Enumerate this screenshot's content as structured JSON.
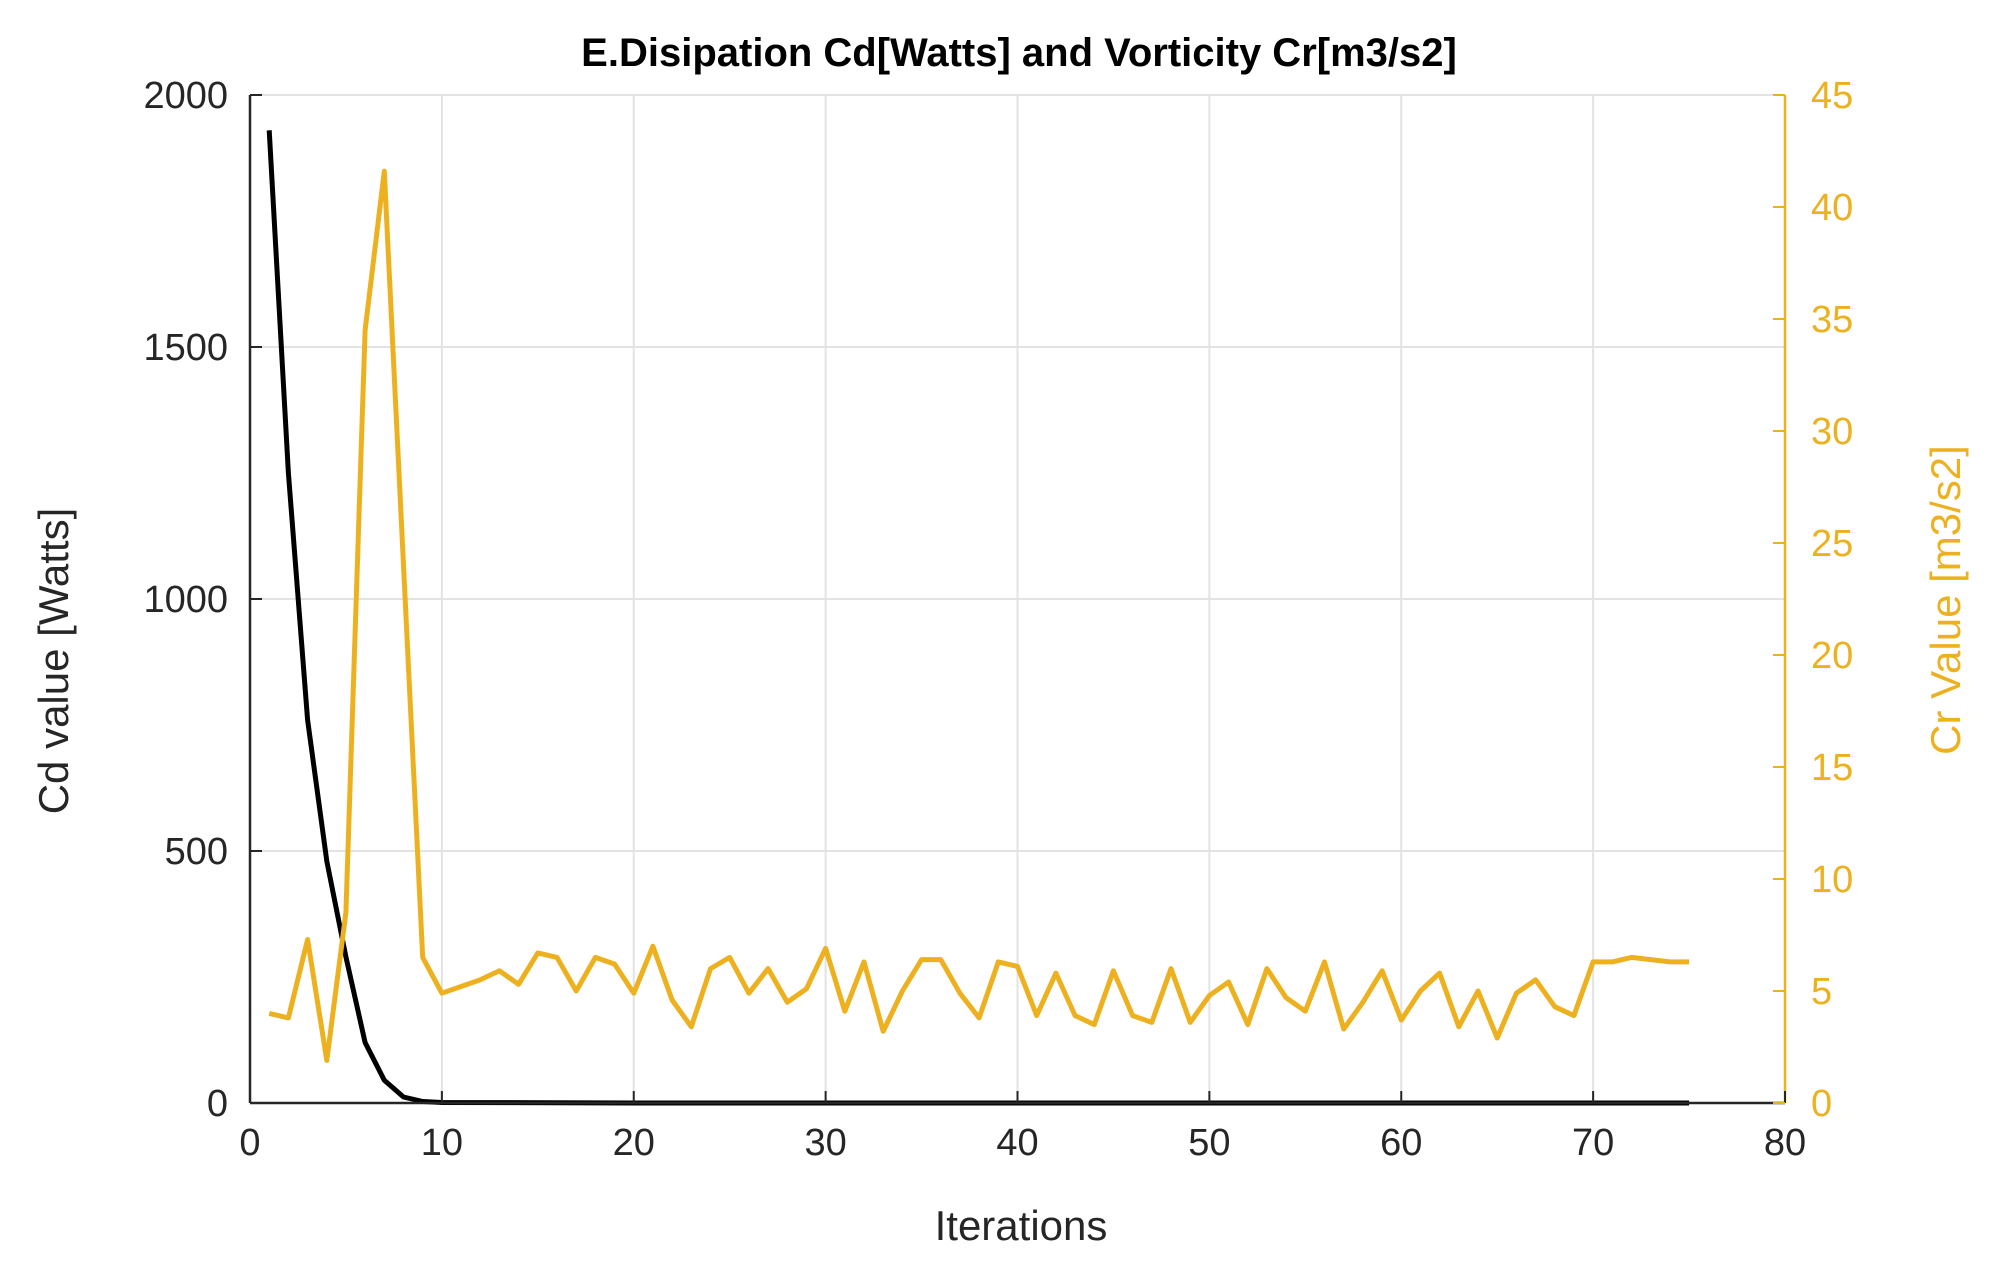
{
  "chart_data": {
    "type": "line",
    "title": "E.Disipation Cd[Watts] and Vorticity Cr[m3/s2]",
    "xlabel": "Iterations",
    "ylabel_left": "Cd value [Watts]",
    "ylabel_right": "Cr Value [m3/s2]",
    "xlim": [
      0,
      80
    ],
    "ylim_left": [
      0,
      2000
    ],
    "ylim_right": [
      0,
      45
    ],
    "x_ticks": [
      0,
      10,
      20,
      30,
      40,
      50,
      60,
      70,
      80
    ],
    "y_ticks_left": [
      0,
      500,
      1000,
      1500,
      2000
    ],
    "y_ticks_right": [
      0,
      5,
      10,
      15,
      20,
      25,
      30,
      35,
      40,
      45
    ],
    "grid": true,
    "colors": {
      "left": "#000000",
      "right": "#EDB120",
      "grid": "#e3e3e3",
      "axis": "#262626"
    },
    "series": [
      {
        "name": "Cd",
        "axis": "left",
        "x": [
          1,
          2,
          3,
          4,
          5,
          6,
          7,
          8,
          9,
          10,
          20,
          30,
          40,
          50,
          60,
          70,
          75
        ],
        "values": [
          1930,
          1250,
          760,
          480,
          290,
          120,
          45,
          12,
          3,
          1,
          0,
          0,
          0,
          0,
          0,
          0,
          0
        ]
      },
      {
        "name": "Cr",
        "axis": "right",
        "x": [
          1,
          2,
          3,
          4,
          5,
          6,
          7,
          8,
          9,
          10,
          11,
          12,
          13,
          14,
          15,
          16,
          17,
          18,
          19,
          20,
          21,
          22,
          23,
          24,
          25,
          26,
          27,
          28,
          29,
          30,
          31,
          32,
          33,
          34,
          35,
          36,
          37,
          38,
          39,
          40,
          41,
          42,
          43,
          44,
          45,
          46,
          47,
          48,
          49,
          50,
          51,
          52,
          53,
          54,
          55,
          56,
          57,
          58,
          59,
          60,
          61,
          62,
          63,
          64,
          65,
          66,
          67,
          68,
          69,
          70,
          71,
          72,
          73,
          74,
          75
        ],
        "values": [
          4,
          3.8,
          7.3,
          1.9,
          8.5,
          34.5,
          41.6,
          24,
          6.5,
          4.9,
          5.2,
          5.5,
          5.9,
          5.3,
          6.7,
          6.5,
          5,
          6.5,
          6.2,
          4.9,
          7,
          4.6,
          3.4,
          6,
          6.5,
          4.9,
          6,
          4.5,
          5.1,
          6.9,
          4.1,
          6.3,
          3.2,
          5,
          6.4,
          6.4,
          4.9,
          3.8,
          6.3,
          6.1,
          3.9,
          5.8,
          3.9,
          3.5,
          5.9,
          3.9,
          3.6,
          6,
          3.6,
          4.8,
          5.4,
          3.5,
          6,
          4.7,
          4.1,
          6.3,
          3.3,
          4.5,
          5.9,
          3.7,
          5,
          5.8,
          3.4,
          5,
          2.9,
          4.9,
          5.5,
          4.3,
          3.9,
          6.3,
          6.3,
          6.5,
          6.4,
          6.3,
          6.3
        ]
      }
    ]
  }
}
